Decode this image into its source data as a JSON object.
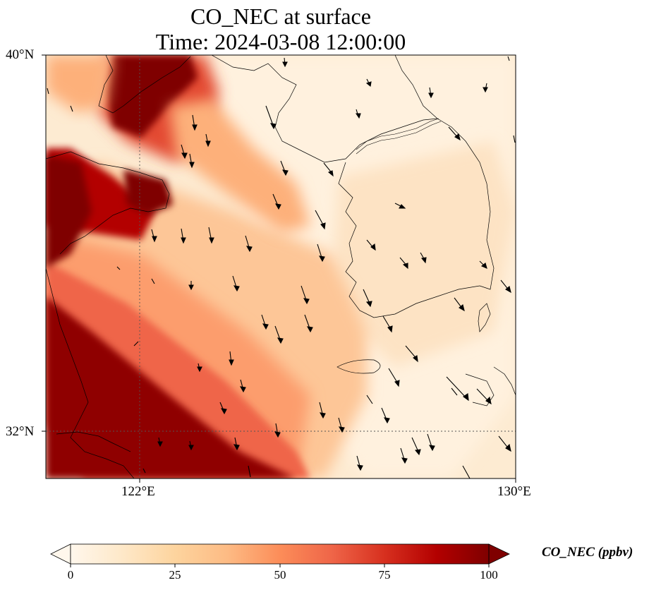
{
  "title": {
    "line1": "CO_NEC at surface",
    "line2": "Time: 2024-03-08 12:00:00"
  },
  "map": {
    "lat_range": [
      31.0,
      40.0
    ],
    "lon_range": [
      120.0,
      130.0
    ],
    "lat_ticks": [
      "40°N",
      "32°N"
    ],
    "lon_ticks": [
      "122°E",
      "130°E"
    ],
    "gridlines": {
      "lat": 32,
      "lon": 122,
      "style": "dotted"
    },
    "field": "CO_NEC",
    "field_description": "Gridded CO concentration with dense red plume along the Chinese coast and lighter values over the Korean peninsula; wind vectors mostly pointing south-southeast."
  },
  "colorbar": {
    "title": "CO_NEC (ppbv)",
    "ticks": [
      "0",
      "25",
      "50",
      "75",
      "100"
    ],
    "min": 0,
    "max": 100,
    "colormap": "OrRd",
    "colors": [
      "#fff7ec",
      "#fee8c8",
      "#fdd49e",
      "#fdbb84",
      "#fc8d59",
      "#ef6548",
      "#d7301f",
      "#b30000",
      "#7f0000"
    ],
    "extend": "both"
  }
}
